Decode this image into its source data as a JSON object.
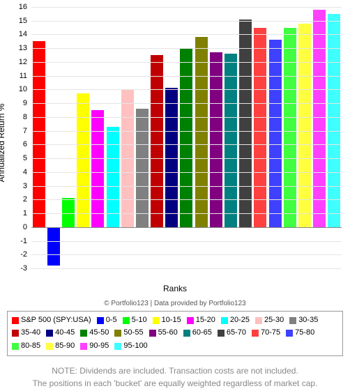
{
  "chart": {
    "type": "bar",
    "ylabel": "Annualized Return %",
    "xlabel": "Ranks",
    "label_fontsize": 12,
    "ylim": [
      -3,
      16
    ],
    "ytick_step": 1,
    "background_color": "#ffffff",
    "grid_color": "#e5e5e5",
    "zero_line_color": "#888888",
    "bar_gap_ratio": 0.15,
    "series": [
      {
        "label": "S&P 500 (SPY:USA)",
        "value": 13.5,
        "color": "#ff0000"
      },
      {
        "label": "0-5",
        "value": -2.8,
        "color": "#0000ff"
      },
      {
        "label": "5-10",
        "value": 2.1,
        "color": "#00ff00"
      },
      {
        "label": "10-15",
        "value": 9.7,
        "color": "#ffff00"
      },
      {
        "label": "15-20",
        "value": 8.5,
        "color": "#ff00ff"
      },
      {
        "label": "20-25",
        "value": 7.3,
        "color": "#00ffff"
      },
      {
        "label": "25-30",
        "value": 10.0,
        "color": "#ffc0c0"
      },
      {
        "label": "30-35",
        "value": 8.6,
        "color": "#808080"
      },
      {
        "label": "35-40",
        "value": 12.5,
        "color": "#c00000"
      },
      {
        "label": "40-45",
        "value": 10.1,
        "color": "#000080"
      },
      {
        "label": "45-50",
        "value": 13.0,
        "color": "#008000"
      },
      {
        "label": "50-55",
        "value": 13.8,
        "color": "#808000"
      },
      {
        "label": "55-60",
        "value": 12.7,
        "color": "#800080"
      },
      {
        "label": "60-65",
        "value": 12.6,
        "color": "#008080"
      },
      {
        "label": "65-70",
        "value": 15.1,
        "color": "#404040"
      },
      {
        "label": "70-75",
        "value": 14.5,
        "color": "#ff4040"
      },
      {
        "label": "75-80",
        "value": 13.6,
        "color": "#4040ff"
      },
      {
        "label": "80-85",
        "value": 14.5,
        "color": "#40ff40"
      },
      {
        "label": "85-90",
        "value": 14.8,
        "color": "#ffff40"
      },
      {
        "label": "90-95",
        "value": 15.8,
        "color": "#ff40ff"
      },
      {
        "label": "95-100",
        "value": 15.5,
        "color": "#40ffff"
      }
    ]
  },
  "attribution": "© Portfolio123 | Data provided by Portfolio123",
  "note_line1": "NOTE: Dividends are included. Transaction costs are not included.",
  "note_line2": "The positions in each 'bucket' are equally weighted regardless of market cap."
}
